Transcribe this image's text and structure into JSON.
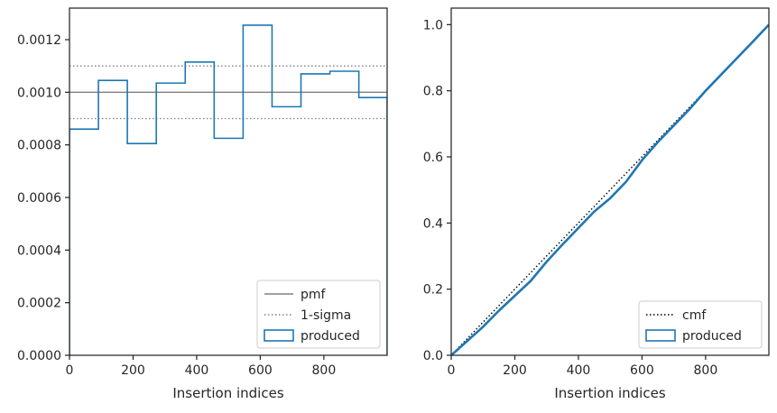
{
  "chart_data": [
    {
      "type": "histogram-step",
      "xlabel": "Insertion indices",
      "ylabel": "",
      "xlim": [
        0,
        999
      ],
      "ylim": [
        0,
        0.00132
      ],
      "xticks": [
        0,
        200,
        400,
        600,
        800
      ],
      "yticks": [
        0,
        0.0002,
        0.0004,
        0.0006,
        0.0008,
        0.001,
        0.0012
      ],
      "ytick_labels": [
        "0.0000",
        "0.0002",
        "0.0004",
        "0.0006",
        "0.0008",
        "0.0010",
        "0.0012"
      ],
      "xtick_labels": [
        "0",
        "200",
        "400",
        "600",
        "800"
      ],
      "series": [
        {
          "name": "pmf",
          "style": "solid",
          "color": "#808080",
          "y": 0.001
        },
        {
          "name": "1-sigma",
          "style": "dotted",
          "color": "#808080",
          "y_upper": 0.0011,
          "y_lower": 0.0009
        },
        {
          "name": "produced",
          "style": "step",
          "color": "#1f77b4",
          "bin_edges": [
            0,
            91,
            182,
            273,
            364,
            455,
            546,
            637,
            728,
            819,
            910,
            999
          ],
          "values": [
            0.00086,
            0.001045,
            0.000805,
            0.001035,
            0.001115,
            0.000825,
            0.001255,
            0.000945,
            0.00107,
            0.00108,
            0.00098
          ]
        }
      ],
      "legend": {
        "placement": "lower right",
        "entries": [
          "pmf",
          "1-sigma",
          "produced"
        ]
      },
      "grid": false
    },
    {
      "type": "line",
      "xlabel": "Insertion indices",
      "ylabel": "",
      "xlim": [
        0,
        999
      ],
      "ylim": [
        0,
        1.05
      ],
      "xticks": [
        0,
        200,
        400,
        600,
        800
      ],
      "xtick_labels": [
        "0",
        "200",
        "400",
        "600",
        "800"
      ],
      "yticks": [
        0,
        0.2,
        0.4,
        0.6,
        0.8,
        1.0
      ],
      "ytick_labels": [
        "0.0",
        "0.2",
        "0.4",
        "0.6",
        "0.8",
        "1.0"
      ],
      "series": [
        {
          "name": "cmf",
          "style": "dotted",
          "color": "#000000",
          "x": [
            0,
            999
          ],
          "y": [
            0,
            1.0
          ]
        },
        {
          "name": "produced",
          "style": "solid",
          "color": "#1f77b4",
          "x": [
            0,
            50,
            100,
            150,
            200,
            250,
            300,
            350,
            400,
            450,
            500,
            550,
            600,
            650,
            700,
            750,
            800,
            850,
            900,
            950,
            999
          ],
          "y": [
            0,
            0.043,
            0.086,
            0.135,
            0.18,
            0.225,
            0.283,
            0.335,
            0.385,
            0.435,
            0.475,
            0.525,
            0.59,
            0.645,
            0.695,
            0.745,
            0.8,
            0.85,
            0.9,
            0.95,
            1.0
          ]
        }
      ],
      "legend": {
        "placement": "lower right",
        "entries": [
          "cmf",
          "produced"
        ]
      },
      "grid": false
    }
  ]
}
